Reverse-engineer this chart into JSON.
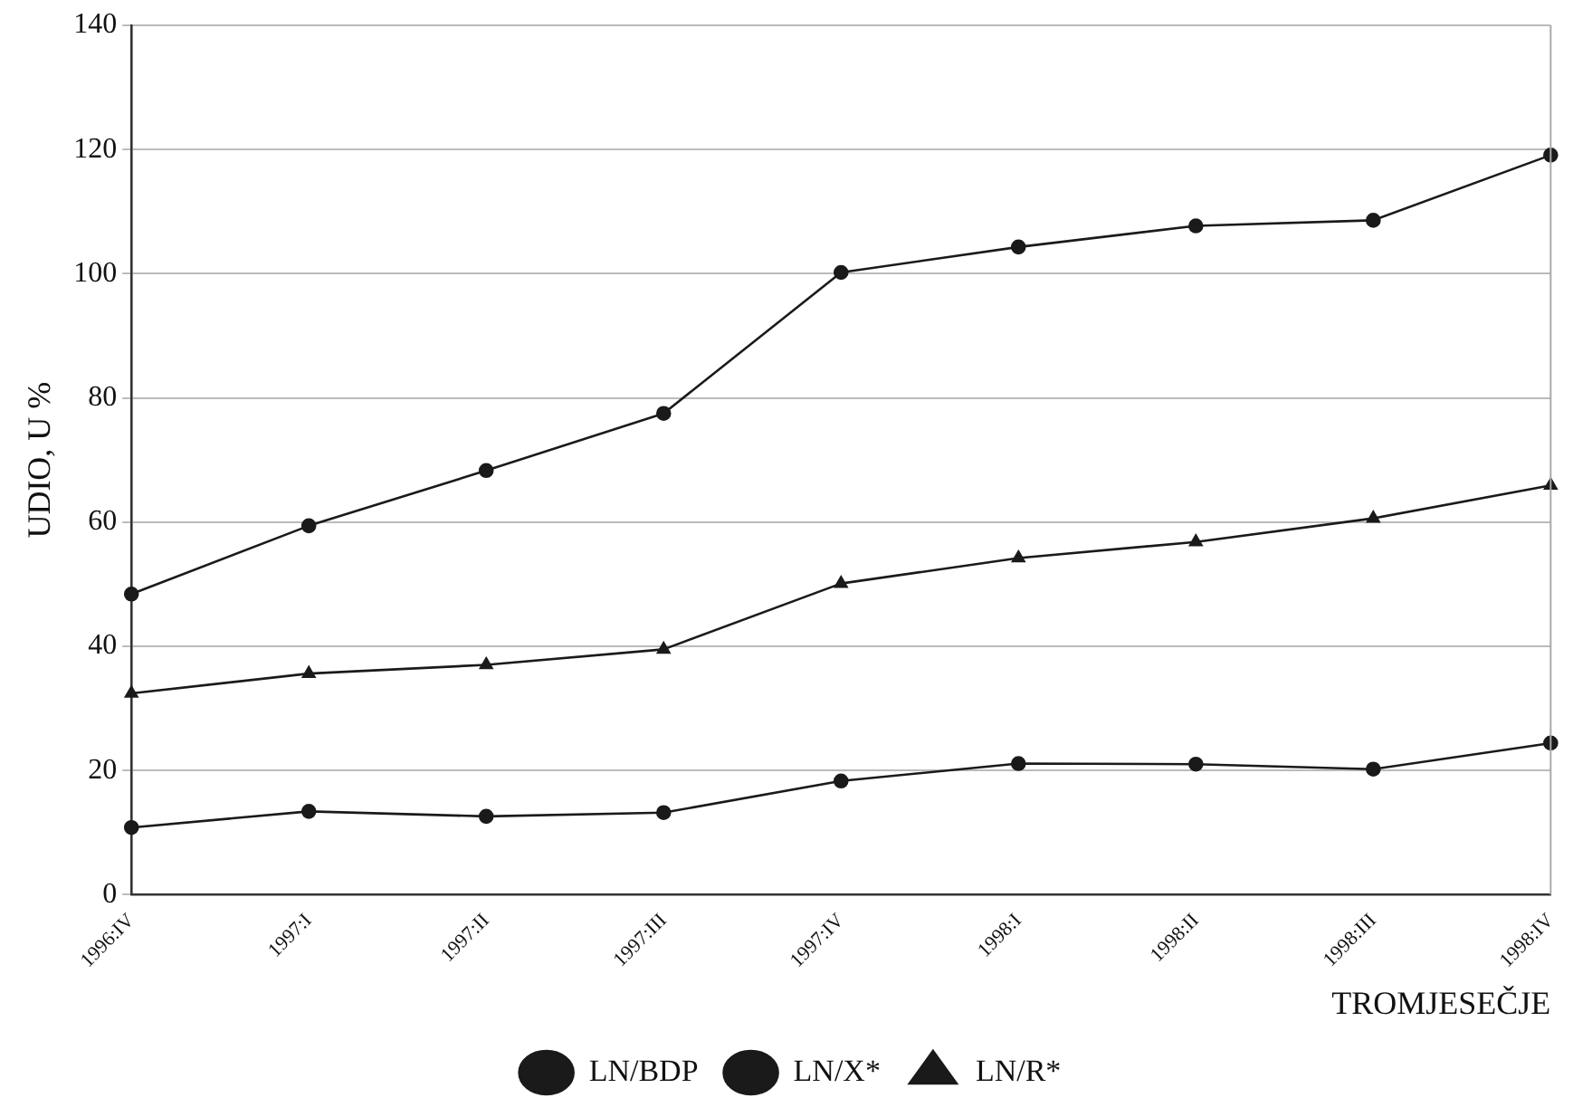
{
  "chart_data": {
    "type": "line",
    "xlabel": "TROMJESEČJE",
    "ylabel": "UDIO, U %",
    "categories": [
      "1996:IV",
      "1997:I",
      "1997:II",
      "1997:III",
      "1997:IV",
      "1998:I",
      "1998:II",
      "1998:III",
      "1998:IV"
    ],
    "series": [
      {
        "name": "LN/BDP",
        "color": "#1a1a1a",
        "marker": "circle",
        "values": [
          10.8,
          13.4,
          12.6,
          13.2,
          18.3,
          21.1,
          21.0,
          20.2,
          24.4
        ]
      },
      {
        "name": "LN/X*",
        "color": "#1a1a1a",
        "marker": "circle",
        "values": [
          48.4,
          59.4,
          68.3,
          77.5,
          100.2,
          104.3,
          107.7,
          108.6,
          119.1
        ]
      },
      {
        "name": "LN/R*",
        "color": "#1a1a1a",
        "marker": "triangle",
        "values": [
          32.4,
          35.6,
          37.0,
          39.5,
          50.1,
          54.2,
          56.8,
          60.6,
          65.9
        ]
      }
    ],
    "ylim": [
      0,
      140
    ],
    "yticks": [
      0,
      20,
      40,
      60,
      80,
      100,
      120,
      140
    ],
    "grid": "y",
    "legend": "bottom",
    "line_style": "solid"
  }
}
